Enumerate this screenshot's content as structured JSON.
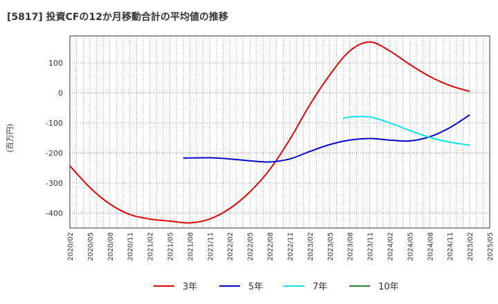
{
  "chart_data": {
    "type": "line",
    "title": "[5817]  投資CFの12か月移動合計の平均値の推移",
    "ylabel": "(百万円)",
    "xlabel": "",
    "ylim": [
      -450,
      190
    ],
    "yticks": [
      100,
      0,
      -100,
      -200,
      -300,
      -400
    ],
    "xticks": [
      "2020/02",
      "2020/05",
      "2020/08",
      "2020/11",
      "2021/02",
      "2021/05",
      "2021/08",
      "2021/11",
      "2022/02",
      "2022/05",
      "2022/08",
      "2022/11",
      "2023/02",
      "2023/05",
      "2023/08",
      "2023/11",
      "2024/02",
      "2024/05",
      "2024/08",
      "2024/11",
      "2025/02",
      "2025/05"
    ],
    "grid": true,
    "legend_position": "bottom",
    "series": [
      {
        "name": "3年",
        "color": "#dd0000",
        "points": [
          [
            "2020/02",
            -243
          ],
          [
            "2020/05",
            -315
          ],
          [
            "2020/08",
            -370
          ],
          [
            "2020/11",
            -405
          ],
          [
            "2021/02",
            -420
          ],
          [
            "2021/05",
            -427
          ],
          [
            "2021/08",
            -433
          ],
          [
            "2021/11",
            -420
          ],
          [
            "2022/02",
            -385
          ],
          [
            "2022/05",
            -330
          ],
          [
            "2022/08",
            -255
          ],
          [
            "2022/11",
            -155
          ],
          [
            "2023/02",
            -40
          ],
          [
            "2023/05",
            60
          ],
          [
            "2023/08",
            140
          ],
          [
            "2023/11",
            170
          ],
          [
            "2024/02",
            140
          ],
          [
            "2024/05",
            95
          ],
          [
            "2024/08",
            55
          ],
          [
            "2024/11",
            25
          ],
          [
            "2025/02",
            5
          ]
        ]
      },
      {
        "name": "5年",
        "color": "#0000cc",
        "points": [
          [
            "2021/07",
            -217
          ],
          [
            "2021/11",
            -216
          ],
          [
            "2022/02",
            -220
          ],
          [
            "2022/05",
            -226
          ],
          [
            "2022/08",
            -230
          ],
          [
            "2022/11",
            -220
          ],
          [
            "2023/02",
            -195
          ],
          [
            "2023/05",
            -172
          ],
          [
            "2023/08",
            -157
          ],
          [
            "2023/11",
            -152
          ],
          [
            "2024/02",
            -157
          ],
          [
            "2024/05",
            -160
          ],
          [
            "2024/08",
            -146
          ],
          [
            "2024/11",
            -116
          ],
          [
            "2025/02",
            -73
          ]
        ]
      },
      {
        "name": "7年",
        "color": "#00e5ee",
        "points": [
          [
            "2023/07",
            -85
          ],
          [
            "2023/08",
            -80
          ],
          [
            "2023/11",
            -80
          ],
          [
            "2024/02",
            -100
          ],
          [
            "2024/05",
            -125
          ],
          [
            "2024/08",
            -148
          ],
          [
            "2024/11",
            -164
          ],
          [
            "2025/02",
            -174
          ]
        ]
      },
      {
        "name": "10年",
        "color": "#228b22",
        "points": []
      }
    ]
  }
}
